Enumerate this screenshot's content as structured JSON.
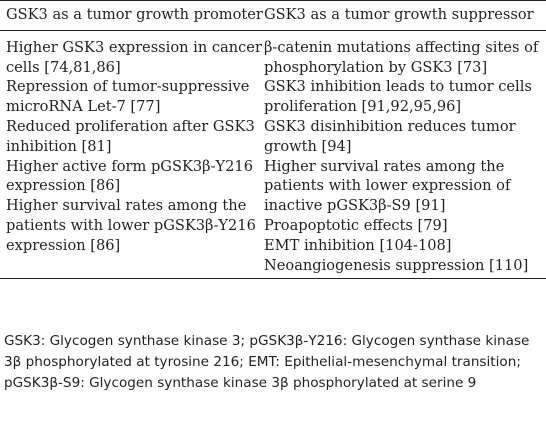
{
  "table": {
    "headers": [
      "GSK3 as a tumor growth promoter",
      "GSK3 as a tumor growth suppressor"
    ],
    "promoter": [
      "Higher GSK3 expression in cancer cells [74,81,86]",
      "Repression of tumor-suppressive microRNA Let-7 [77]",
      "Reduced proliferation after GSK3 inhibition [81]",
      "Higher active form pGSK3β-Y216 expression [86]",
      "Higher survival rates among the patients with lower pGSK3β-Y216 expression [86]"
    ],
    "suppressor": [
      "β-catenin mutations affecting sites of phosphorylation by GSK3 [73]",
      "GSK3 inhibition leads to tumor cells proliferation [91,92,95,96]",
      "GSK3 disinhibition reduces tumor growth [94]",
      "Higher survival rates among the patients with lower expression of inactive pGSK3β-S9 [91]",
      "Proapoptotic effects [79]",
      "EMT inhibition [104-108]",
      "Neoangiogenesis suppression [110]"
    ]
  },
  "footnote": "GSK3: Glycogen synthase kinase 3; pGSK3β-Y216: Glycogen synthase kinase 3β phosphorylated at tyrosine 216; EMT: Epithelial-mesenchymal transition; pGSK3β-S9: Glycogen synthase kinase 3β phosphorylated at serine 9"
}
